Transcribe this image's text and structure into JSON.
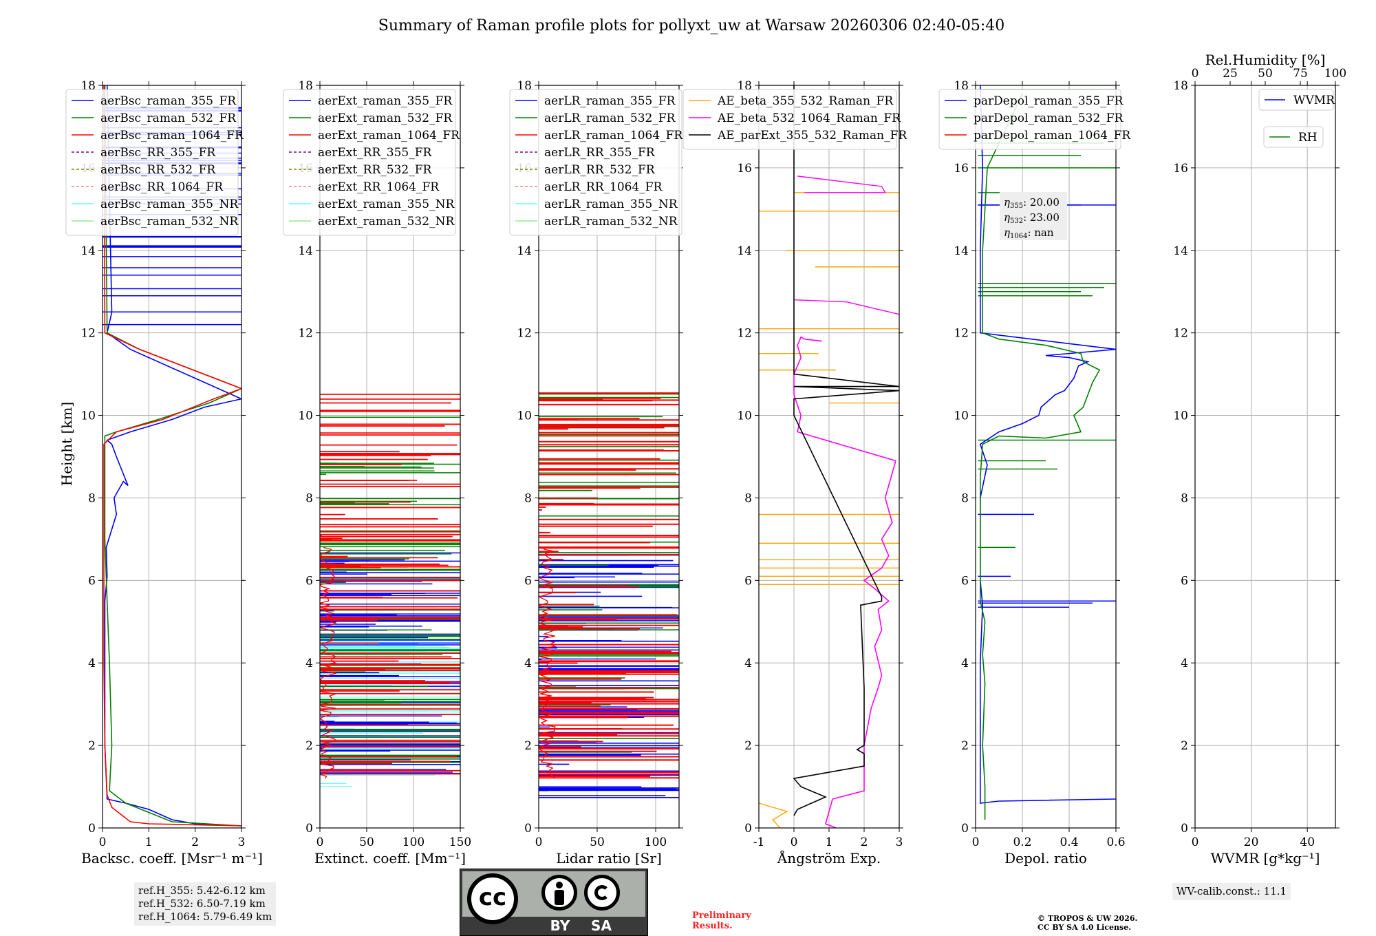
{
  "chart_data": {
    "type": "line",
    "title": "Summary of Raman profile plots for pollyxt_uw at Warsaw 20260306 02:40-05:40",
    "ylabel": "Height [km]",
    "ylim": [
      0,
      18
    ],
    "yticks": [
      0,
      2,
      4,
      6,
      8,
      10,
      12,
      14,
      16,
      18
    ],
    "panels": [
      {
        "id": "backscatter",
        "xlabel": "Backsc. coeff. [Msr⁻¹ m⁻¹]",
        "xlim": [
          0,
          3
        ],
        "xticks": [
          0,
          1,
          2,
          3
        ],
        "legend": [
          {
            "label": "aerBsc_raman_355_FR",
            "color": "#0000ff",
            "dash": false
          },
          {
            "label": "aerBsc_raman_532_FR",
            "color": "#008000",
            "dash": false
          },
          {
            "label": "aerBsc_raman_1064_FR",
            "color": "#ff0000",
            "dash": false
          },
          {
            "label": "aerBsc_RR_355_FR",
            "color": "#800080",
            "dash": true
          },
          {
            "label": "aerBsc_RR_532_FR",
            "color": "#808000",
            "dash": true
          },
          {
            "label": "aerBsc_RR_1064_FR",
            "color": "#f08080",
            "dash": true
          },
          {
            "label": "aerBsc_raman_355_NR",
            "color": "#66ffff",
            "dash": false
          },
          {
            "label": "aerBsc_raman_532_NR",
            "color": "#90ee90",
            "dash": false
          }
        ],
        "series": [
          {
            "name": "aerBsc_raman_355_FR",
            "color": "#0000ff",
            "x": [
              3.0,
              2.0,
              1.5,
              1.2,
              1.0,
              0.5,
              0.1,
              0.05,
              0.05,
              0.05,
              0.1,
              0.08,
              0.3,
              0.25,
              0.45,
              0.55,
              0.3,
              0.2,
              0.1,
              0.6,
              1.5,
              2.2,
              3.0,
              0.6,
              0.1,
              0.2,
              0.1
            ],
            "y": [
              0.05,
              0.1,
              0.2,
              0.35,
              0.45,
              0.6,
              0.7,
              2.0,
              4.0,
              5.5,
              6.1,
              6.8,
              7.6,
              8.0,
              8.4,
              8.3,
              9.0,
              9.3,
              9.4,
              9.6,
              9.9,
              10.2,
              10.4,
              11.6,
              12.0,
              12.5,
              18.0
            ]
          },
          {
            "name": "aerBsc_raman_532_FR",
            "color": "#008000",
            "x": [
              3.0,
              1.5,
              0.5,
              0.15,
              0.2,
              0.15,
              0.1,
              0.05,
              0.05,
              0.05,
              0.05,
              0.3,
              1.2,
              2.3,
              3.0,
              0.8,
              0.1,
              0.05
            ],
            "y": [
              0.05,
              0.15,
              0.6,
              0.9,
              2.0,
              4.0,
              5.5,
              7.0,
              8.5,
              9.3,
              9.5,
              9.6,
              9.9,
              10.3,
              10.65,
              11.6,
              12.0,
              18.0
            ]
          },
          {
            "name": "aerBsc_raman_1064_FR",
            "color": "#ff0000",
            "x": [
              3.0,
              1.0,
              0.6,
              0.2,
              0.1,
              0.05,
              0.03,
              0.03,
              0.03,
              0.03,
              0.3,
              1.3,
              2.4,
              3.0,
              0.8,
              0.05,
              0.03
            ],
            "y": [
              0.05,
              0.1,
              0.15,
              0.5,
              0.8,
              2.0,
              4.0,
              6.0,
              8.5,
              9.3,
              9.6,
              9.9,
              10.4,
              10.65,
              11.6,
              12.0,
              18.0
            ]
          }
        ]
      },
      {
        "id": "extinction",
        "xlabel": "Extinct. coeff. [Mm⁻¹]",
        "xlim": [
          0,
          150
        ],
        "xticks": [
          0,
          50,
          100,
          150
        ],
        "legend": [
          {
            "label": "aerExt_raman_355_FR",
            "color": "#0000ff",
            "dash": false
          },
          {
            "label": "aerExt_raman_532_FR",
            "color": "#008000",
            "dash": false
          },
          {
            "label": "aerExt_raman_1064_FR",
            "color": "#ff0000",
            "dash": false
          },
          {
            "label": "aerExt_RR_355_FR",
            "color": "#800080",
            "dash": true
          },
          {
            "label": "aerExt_RR_532_FR",
            "color": "#808000",
            "dash": true
          },
          {
            "label": "aerExt_RR_1064_FR",
            "color": "#f08080",
            "dash": true
          },
          {
            "label": "aerExt_raman_355_NR",
            "color": "#66ffff",
            "dash": false
          },
          {
            "label": "aerExt_raman_532_NR",
            "color": "#90ee90",
            "dash": false
          }
        ],
        "series": []
      },
      {
        "id": "lidar_ratio",
        "xlabel": "Lidar ratio [Sr]",
        "xlim": [
          0,
          120
        ],
        "xticks": [
          0,
          50,
          100
        ],
        "legend": [
          {
            "label": "aerLR_raman_355_FR",
            "color": "#0000ff",
            "dash": false
          },
          {
            "label": "aerLR_raman_532_FR",
            "color": "#008000",
            "dash": false
          },
          {
            "label": "aerLR_raman_1064_FR",
            "color": "#ff0000",
            "dash": false
          },
          {
            "label": "aerLR_RR_355_FR",
            "color": "#800080",
            "dash": true
          },
          {
            "label": "aerLR_RR_532_FR",
            "color": "#808000",
            "dash": true
          },
          {
            "label": "aerLR_RR_1064_FR",
            "color": "#f08080",
            "dash": true
          },
          {
            "label": "aerLR_raman_355_NR",
            "color": "#66ffff",
            "dash": false
          },
          {
            "label": "aerLR_raman_532_NR",
            "color": "#90ee90",
            "dash": false
          }
        ],
        "series": []
      },
      {
        "id": "angstrom",
        "xlabel": "Ångström Exp.",
        "xlim": [
          -1,
          3
        ],
        "xticks": [
          -1,
          0,
          1,
          2,
          3
        ],
        "legend": [
          {
            "label": "AE_beta_355_532_Raman_FR",
            "color": "#ffa500",
            "dash": false
          },
          {
            "label": "AE_beta_532_1064_Raman_FR",
            "color": "#ff00ff",
            "dash": false
          },
          {
            "label": "AE_parExt_355_532_Raman_FR",
            "color": "#000000",
            "dash": false
          }
        ],
        "series": [
          {
            "name": "AE_beta_532_1064_Raman_FR",
            "color": "#ff00ff",
            "x": [
              1.2,
              0.9,
              1.1,
              2.0,
              2.0,
              2.2,
              2.4,
              2.5,
              2.3,
              2.5,
              2.4,
              2.7,
              2.3,
              2.0,
              2.5,
              2.7,
              2.5,
              2.8,
              2.6,
              2.9,
              0.1,
              0.2,
              0.0,
              0.0,
              0.2,
              0.1,
              0.2,
              0.3,
              0.8
            ],
            "y": [
              0.0,
              0.1,
              0.7,
              0.9,
              2.0,
              2.9,
              3.4,
              3.7,
              4.4,
              4.8,
              5.3,
              5.5,
              5.8,
              6.0,
              6.3,
              6.6,
              7.0,
              7.4,
              8.0,
              8.9,
              9.6,
              10.0,
              10.5,
              11.0,
              11.4,
              11.7,
              11.9,
              11.85,
              11.8
            ]
          },
          {
            "name": "AE_parExt_355_532_Raman_FR",
            "color": "#000000",
            "x": [
              0.0,
              0.1,
              0.9,
              0.2,
              0.0,
              2.0,
              2.0,
              1.8,
              2.0,
              2.0,
              1.9,
              2.5,
              2.5,
              0.0,
              0.0,
              3.0,
              0.0,
              3.0,
              0.0,
              0.0
            ],
            "y": [
              0.3,
              0.45,
              0.75,
              1.0,
              1.2,
              1.5,
              1.8,
              1.9,
              2.0,
              3.4,
              5.4,
              5.5,
              5.6,
              10.0,
              10.4,
              10.6,
              10.7,
              10.7,
              11.0,
              18.0
            ]
          }
        ]
      },
      {
        "id": "depol",
        "xlabel": "Depol. ratio",
        "xlim": [
          0,
          0.6
        ],
        "xticks": [
          0.0,
          0.2,
          0.4,
          0.6
        ],
        "legend": [
          {
            "label": "parDepol_raman_355_FR",
            "color": "#0000ff",
            "dash": false
          },
          {
            "label": "parDepol_raman_532_FR",
            "color": "#008000",
            "dash": false
          },
          {
            "label": "parDepol_raman_1064_FR",
            "color": "#ff0000",
            "dash": false
          }
        ],
        "series": [
          {
            "name": "parDepol_raman_355_FR",
            "color": "#0000ff",
            "x": [
              0.6,
              0.1,
              0.02,
              0.02,
              0.02,
              0.03,
              0.02,
              0.02,
              0.05,
              0.02,
              0.1,
              0.2,
              0.27,
              0.28,
              0.34,
              0.38,
              0.42,
              0.44,
              0.48,
              0.4,
              0.3,
              0.6,
              0.02,
              0.02,
              0.03,
              0.02
            ],
            "y": [
              0.7,
              0.65,
              0.6,
              2.0,
              4.0,
              5.4,
              6.0,
              8.0,
              8.8,
              9.3,
              9.6,
              9.8,
              10.0,
              10.2,
              10.5,
              10.6,
              10.9,
              11.2,
              11.3,
              11.4,
              11.45,
              11.6,
              12.0,
              14.0,
              16.0,
              18.0
            ]
          },
          {
            "name": "parDepol_raman_532_FR",
            "color": "#008000",
            "x": [
              0.04,
              0.04,
              0.03,
              0.04,
              0.03,
              0.04,
              0.02,
              0.02,
              0.02,
              0.03,
              0.1,
              0.3,
              0.45,
              0.42,
              0.46,
              0.48,
              0.5,
              0.53,
              0.46,
              0.45,
              0.3,
              0.1,
              0.03,
              0.03,
              0.05,
              0.2
            ],
            "y": [
              0.2,
              1.0,
              2.0,
              3.5,
              4.2,
              5.0,
              5.5,
              7.0,
              8.5,
              9.3,
              9.5,
              9.45,
              9.6,
              10.0,
              10.2,
              10.5,
              10.8,
              11.1,
              11.3,
              11.5,
              11.7,
              11.85,
              12.0,
              14.0,
              16.0,
              17.8
            ]
          }
        ]
      },
      {
        "id": "wvmr",
        "xlabel": "WVMR [g*kg⁻¹]",
        "xlim": [
          0,
          50
        ],
        "xticks": [
          0,
          20,
          40
        ],
        "top_xlabel": "Rel.Humidity [%]",
        "top_xlim": [
          0,
          100
        ],
        "top_xticks": [
          0,
          25,
          50,
          75,
          100
        ],
        "legend": [
          {
            "label": "WVMR",
            "color": "#0000ff",
            "dash": false
          },
          {
            "label": "RH",
            "color": "#008000",
            "dash": false
          }
        ],
        "series": []
      }
    ],
    "annotations": {
      "eta": [
        {
          "sub": "355",
          "value": "20.00"
        },
        {
          "sub": "532",
          "value": "23.00"
        },
        {
          "sub": "1064",
          "value": "nan"
        }
      ]
    }
  },
  "footer": {
    "ref_heights": [
      "ref.H_355: 5.42-6.12 km",
      "ref.H_532: 6.50-7.19 km",
      "ref.H_1064: 5.79-6.49 km"
    ],
    "preliminary": [
      "Preliminary",
      "Results."
    ],
    "copyright": [
      "© TROPOS & UW 2026.",
      "CC BY SA 4.0 License."
    ],
    "wv_calib": "WV-calib.const.: 11.1",
    "license_badge": {
      "cc": "cc",
      "by": "BY",
      "sa": "SA"
    }
  },
  "colors": {
    "blue": "#0000ff",
    "green": "#008000",
    "red": "#ff0000",
    "cyan": "#66ffff",
    "orange": "#ffa500",
    "magenta": "#ff00ff",
    "black": "#000000"
  }
}
